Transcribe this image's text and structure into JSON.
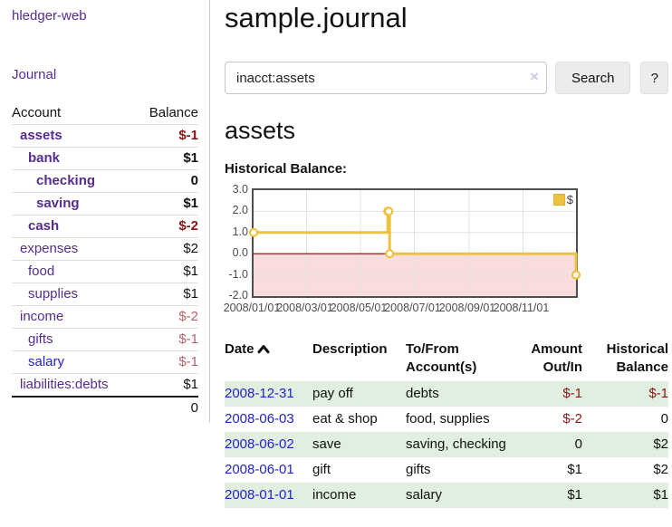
{
  "app": {
    "title": "hledger-web",
    "nav_journal": "Journal"
  },
  "colors": {
    "link_purple": "#552d90",
    "link_blue": "#2323cc",
    "negative_dark": "#8b1515",
    "negative_soft": "#b2636b",
    "series_gold": "#edc240",
    "row_stripe_green": "#e1efe0",
    "negative_region_pink": "#f9dcdc",
    "zero_line_red": "#8b0000"
  },
  "sidebar": {
    "accounts_header": {
      "account": "Account",
      "balance": "Balance"
    },
    "accounts": [
      {
        "name": "assets",
        "depth": 1,
        "balance": "$-1",
        "negative": "dark",
        "bold": true
      },
      {
        "name": "bank",
        "depth": 2,
        "balance": "$1",
        "negative": "",
        "bold": true
      },
      {
        "name": "checking",
        "depth": 3,
        "balance": "0",
        "negative": "",
        "bold": true
      },
      {
        "name": "saving",
        "depth": 3,
        "balance": "$1",
        "negative": "",
        "bold": true
      },
      {
        "name": "cash",
        "depth": 2,
        "balance": "$-2",
        "negative": "dark",
        "bold": true
      },
      {
        "name": "expenses",
        "depth": 1,
        "balance": "$2",
        "negative": "",
        "bold": false
      },
      {
        "name": "food",
        "depth": 2,
        "balance": "$1",
        "negative": "",
        "bold": false
      },
      {
        "name": "supplies",
        "depth": 2,
        "balance": "$1",
        "negative": "",
        "bold": false
      },
      {
        "name": "income",
        "depth": 1,
        "balance": "$-2",
        "negative": "soft",
        "bold": false
      },
      {
        "name": "gifts",
        "depth": 2,
        "balance": "$-1",
        "negative": "soft",
        "bold": false
      },
      {
        "name": "salary",
        "depth": 2,
        "balance": "$-1",
        "negative": "soft",
        "bold": false,
        "blue_link": true
      },
      {
        "name": "liabilities:debts",
        "depth": 1,
        "balance": "$1",
        "negative": "",
        "bold": false
      }
    ],
    "total": "0"
  },
  "header": {
    "title": "sample.journal"
  },
  "search": {
    "query": "inacct:assets",
    "clear_icon": "×",
    "button_label": "Search",
    "help_label": "?"
  },
  "account_page": {
    "heading": "assets",
    "chart_label": "Historical Balance:"
  },
  "chart_data": {
    "type": "line",
    "step": true,
    "title": "Historical Balance",
    "series": [
      {
        "name": "$",
        "color": "#edc240",
        "points": [
          [
            "2008-01-01",
            1
          ],
          [
            "2008-06-01",
            2
          ],
          [
            "2008-06-02",
            2
          ],
          [
            "2008-06-03",
            0
          ],
          [
            "2008-12-31",
            -1
          ]
        ]
      }
    ],
    "x_tick_labels": [
      "2008/01/01",
      "2008/03/01",
      "2008/05/01",
      "2008/07/01",
      "2008/09/01",
      "2008/11/01"
    ],
    "y_tick_labels": [
      "3.0",
      "2.0",
      "1.0",
      "0.0",
      "-1.0",
      "-2.0"
    ],
    "xlim": [
      "2008-01-01",
      "2008-12-31"
    ],
    "ylim": [
      -2,
      3
    ],
    "grid": true,
    "legend_position": "top-right"
  },
  "register_table": {
    "columns": [
      {
        "key": "date",
        "lines": [
          "Date"
        ],
        "sorted_asc": true
      },
      {
        "key": "description",
        "lines": [
          "Description"
        ]
      },
      {
        "key": "accounts",
        "lines": [
          "To/From",
          "Account(s)"
        ]
      },
      {
        "key": "amount",
        "lines": [
          "Amount",
          "Out/In"
        ]
      },
      {
        "key": "balance",
        "lines": [
          "Historical",
          "Balance"
        ]
      }
    ],
    "rows": [
      {
        "date": "2008-12-31",
        "description": "pay off",
        "accounts": "debts",
        "amount": "$-1",
        "amount_negative": true,
        "balance": "$-1",
        "balance_negative": true
      },
      {
        "date": "2008-06-03",
        "description": "eat & shop",
        "accounts": "food, supplies",
        "amount": "$-2",
        "amount_negative": true,
        "balance": "0",
        "balance_negative": false
      },
      {
        "date": "2008-06-02",
        "description": "save",
        "accounts": "saving, checking",
        "amount": "0",
        "amount_negative": false,
        "balance": "$2",
        "balance_negative": false
      },
      {
        "date": "2008-06-01",
        "description": "gift",
        "accounts": "gifts",
        "amount": "$1",
        "amount_negative": false,
        "balance": "$2",
        "balance_negative": false
      },
      {
        "date": "2008-01-01",
        "description": "income",
        "accounts": "salary",
        "amount": "$1",
        "amount_negative": false,
        "balance": "$1",
        "balance_negative": false
      }
    ]
  }
}
